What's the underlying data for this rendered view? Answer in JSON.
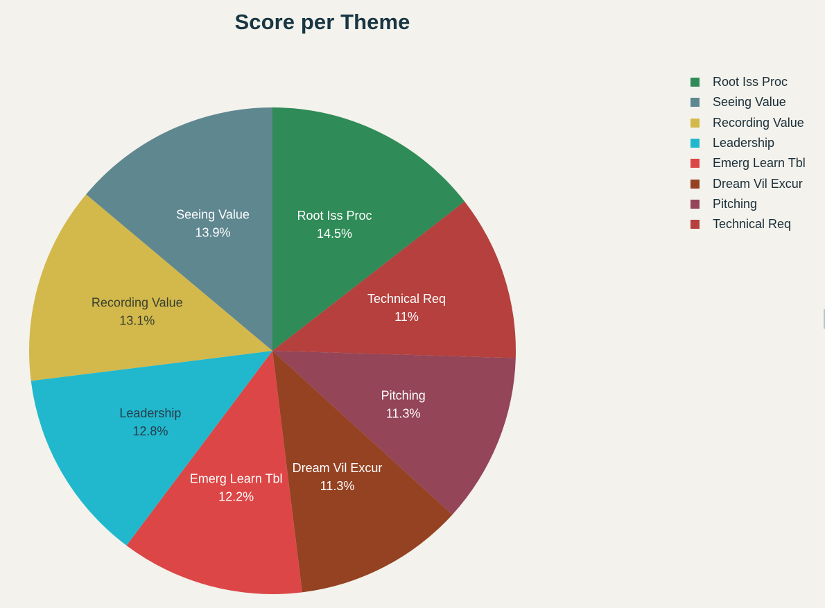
{
  "chart_data": {
    "type": "pie",
    "title": "Score per Theme",
    "slices": [
      {
        "label": "Root Iss Proc",
        "value": 14.5,
        "value_label": "14.5%",
        "color": "#2f8b57",
        "label_color": "#ffffff"
      },
      {
        "label": "Technical Req",
        "value": 11.0,
        "value_label": "11%",
        "color": "#b5403d",
        "label_color": "#ffffff"
      },
      {
        "label": "Pitching",
        "value": 11.3,
        "value_label": "11.3%",
        "color": "#944558",
        "label_color": "#ffffff"
      },
      {
        "label": "Dream Vil Excur",
        "value": 11.3,
        "value_label": "11.3%",
        "color": "#944222",
        "label_color": "#ffffff"
      },
      {
        "label": "Emerg Learn Tbl",
        "value": 12.2,
        "value_label": "12.2%",
        "color": "#dc4646",
        "label_color": "#ffffff"
      },
      {
        "label": "Leadership",
        "value": 12.8,
        "value_label": "12.8%",
        "color": "#21b8ce",
        "label_color": "#263b48"
      },
      {
        "label": "Recording Value",
        "value": 13.1,
        "value_label": "13.1%",
        "color": "#d3b84b",
        "label_color": "#36402e"
      },
      {
        "label": "Seeing Value",
        "value": 13.9,
        "value_label": "13.9%",
        "color": "#5f8790",
        "label_color": "#ffffff"
      }
    ],
    "legend": {
      "placement": "top-right",
      "entries": [
        {
          "label": "Root Iss Proc",
          "color": "#2f8b57"
        },
        {
          "label": "Seeing Value",
          "color": "#5f8790"
        },
        {
          "label": "Recording Value",
          "color": "#d3b84b"
        },
        {
          "label": "Leadership",
          "color": "#21b8ce"
        },
        {
          "label": "Emerg Learn Tbl",
          "color": "#dc4646"
        },
        {
          "label": "Dream Vil Excur",
          "color": "#944222"
        },
        {
          "label": "Pitching",
          "color": "#944558"
        },
        {
          "label": "Technical Req",
          "color": "#b5403d"
        }
      ]
    }
  }
}
